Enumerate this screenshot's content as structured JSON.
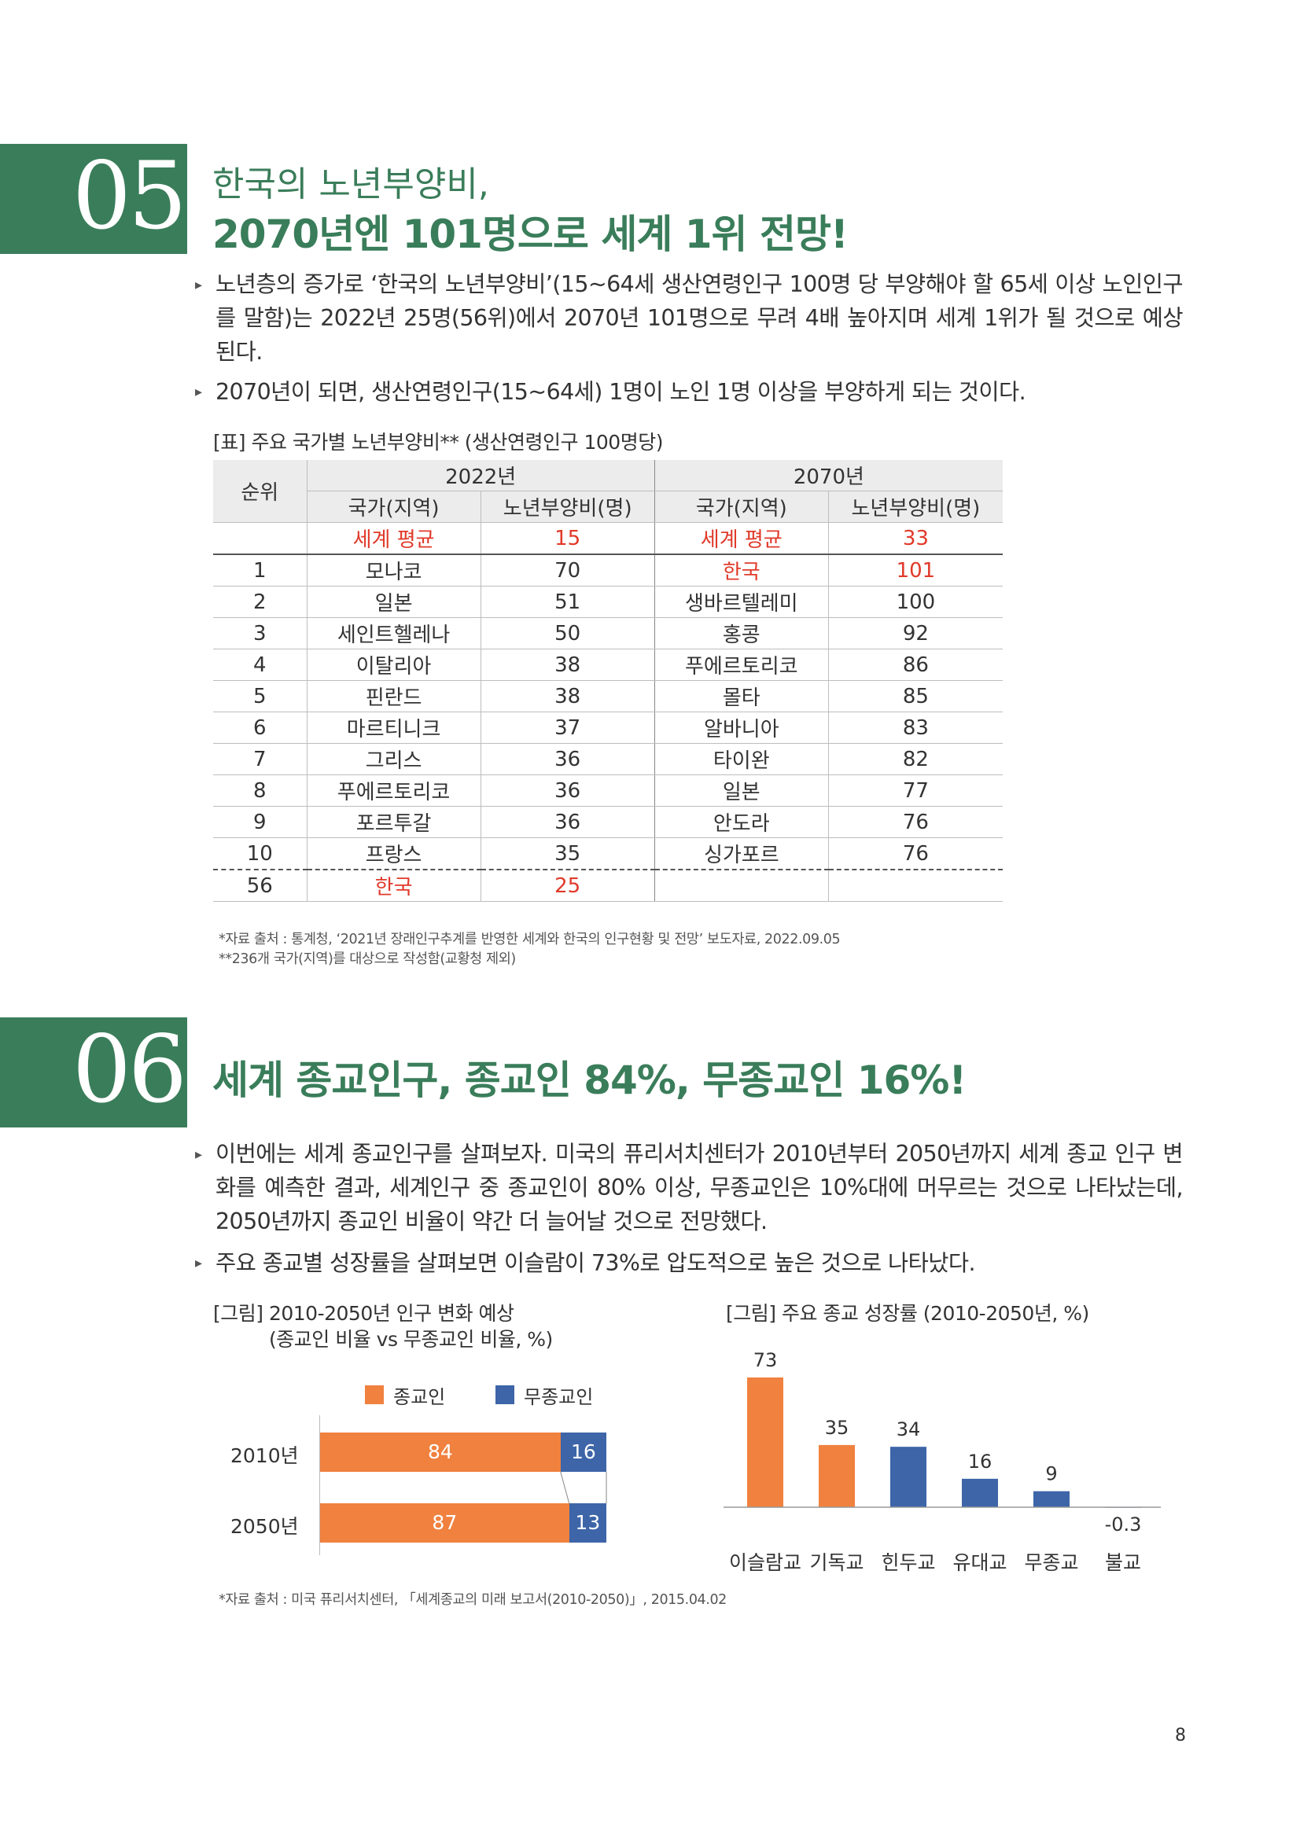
{
  "section05": {
    "number": "05",
    "title_line1": "한국의 노년부양비,",
    "title_line2": "2070년엔 101명으로 세계 1위 전망!",
    "bullet_symbol": "▸",
    "paragraphs": [
      "노년층의 증가로 ‘한국의 노년부양비’(15~64세 생산연령인구 100명 당 부양해야 할 65세 이상 노인인구를 말함)는 2022년 25명(56위)에서 2070년 101명으로 무려 4배 높아지며 세계 1위가 될 것으로 예상된다.",
      "2070년이 되면, 생산연령인구(15~64세) 1명이 노인 1명 이상을 부양하게 되는 것이다."
    ],
    "table_caption": "[표] 주요 국가별 노년부양비** (생산연령인구 100명당)",
    "table": {
      "rank_header": "순위",
      "year1": "2022년",
      "year2": "2070년",
      "col_country": "국가(지역)",
      "col_ratio": "노년부양비(명)",
      "average_row": {
        "rank": "",
        "c2022": "세계 평균",
        "v2022": "15",
        "c2070": "세계 평균",
        "v2070": "33"
      },
      "rows": [
        {
          "rank": "1",
          "c2022": "모나코",
          "v2022": "70",
          "c2070": "한국",
          "v2070": "101"
        },
        {
          "rank": "2",
          "c2022": "일본",
          "v2022": "51",
          "c2070": "생바르텔레미",
          "v2070": "100"
        },
        {
          "rank": "3",
          "c2022": "세인트헬레나",
          "v2022": "50",
          "c2070": "홍콩",
          "v2070": "92"
        },
        {
          "rank": "4",
          "c2022": "이탈리아",
          "v2022": "38",
          "c2070": "푸에르토리코",
          "v2070": "86"
        },
        {
          "rank": "5",
          "c2022": "핀란드",
          "v2022": "38",
          "c2070": "몰타",
          "v2070": "85"
        },
        {
          "rank": "6",
          "c2022": "마르티니크",
          "v2022": "37",
          "c2070": "알바니아",
          "v2070": "83"
        },
        {
          "rank": "7",
          "c2022": "그리스",
          "v2022": "36",
          "c2070": "타이완",
          "v2070": "82"
        },
        {
          "rank": "8",
          "c2022": "푸에르토리코",
          "v2022": "36",
          "c2070": "일본",
          "v2070": "77"
        },
        {
          "rank": "9",
          "c2022": "포르투갈",
          "v2022": "36",
          "c2070": "안도라",
          "v2070": "76"
        },
        {
          "rank": "10",
          "c2022": "프랑스",
          "v2022": "35",
          "c2070": "싱가포르",
          "v2070": "76"
        }
      ],
      "korea_row": {
        "rank": "56",
        "c2022": "한국",
        "v2022": "25",
        "c2070": "",
        "v2070": ""
      }
    },
    "note1": "*자료 출처 : 통계청, ‘2021년 장래인구추계를 반영한 세계와 한국의 인구현황 및 전망’ 보도자료, 2022.09.05",
    "note2": "**236개 국가(지역)를 대상으로 작성함(교황청 제외)"
  },
  "section06": {
    "number": "06",
    "title": "세계 종교인구, 종교인 84%, 무종교인 16%!",
    "bullet_symbol": "▸",
    "paragraphs": [
      "이번에는 세계 종교인구를 살펴보자. 미국의 퓨리서치센터가 2010년부터 2050년까지 세계 종교 인구 변화를 예측한 결과, 세계인구 중 종교인이 80% 이상, 무종교인은 10%대에 머무르는 것으로 나타났는데, 2050년까지 종교인 비율이 약간 더 늘어날 것으로 전망했다.",
      "주요 종교별 성장률을 살펴보면 이슬람이 73%로 압도적으로 높은 것으로 나타났다."
    ],
    "note": "*자료 출처 : 미국 퓨리서치센터, 「세계종교의 미래 보고서(2010-2050)」, 2015.04.02"
  },
  "chart_data": [
    {
      "type": "bar",
      "orientation": "horizontal-stacked",
      "title": "[그림] 2010-2050년 인구 변화 예상",
      "subtitle": "(종교인 비율 vs 무종교인 비율, %)",
      "categories": [
        "2010년",
        "2050년"
      ],
      "series": [
        {
          "name": "종교인",
          "values": [
            84,
            87
          ],
          "color": "#f0813f"
        },
        {
          "name": "무종교인",
          "values": [
            16,
            13
          ],
          "color": "#3d65a8"
        }
      ],
      "xlim": [
        0,
        100
      ],
      "legend": "top",
      "grid": false
    },
    {
      "type": "bar",
      "title": "[그림] 주요 종교 성장률 (2010-2050년, %)",
      "categories": [
        "이슬람교",
        "기독교",
        "힌두교",
        "유대교",
        "무종교",
        "불교"
      ],
      "values": [
        73,
        35,
        34,
        16,
        9,
        -0.3
      ],
      "value_labels": [
        "73",
        "35",
        "34",
        "16",
        "9",
        "-0.3"
      ],
      "colors": [
        "#f0813f",
        "#f0813f",
        "#3d65a8",
        "#3d65a8",
        "#3d65a8",
        "#3d65a8"
      ],
      "ylim": [
        -1,
        75
      ],
      "grid": false
    }
  ],
  "page_number": "8"
}
